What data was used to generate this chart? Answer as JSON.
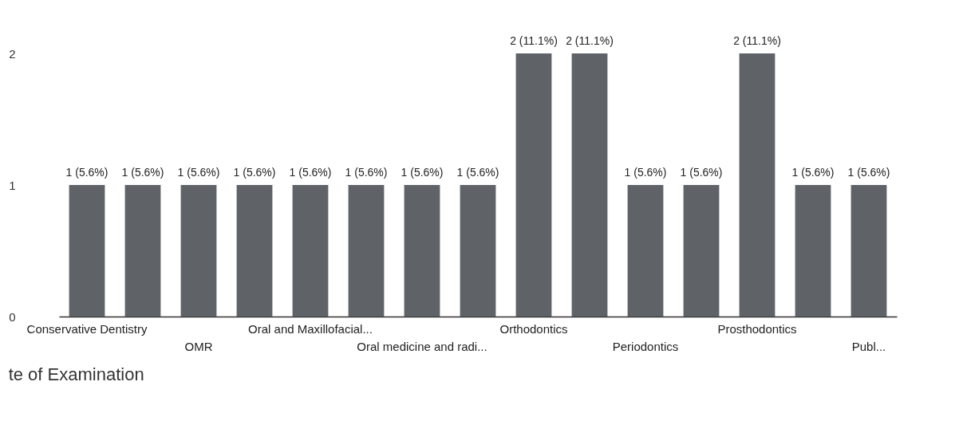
{
  "chart_data": {
    "type": "bar",
    "categories": [
      "Conservative Dentistry",
      null,
      "OMR",
      null,
      "Oral and Maxillofacial...",
      null,
      "Oral medicine and radi...",
      null,
      "Orthodontics",
      null,
      "Periodontics",
      null,
      "Prosthodontics",
      null,
      "Publ..."
    ],
    "values": [
      1,
      1,
      1,
      1,
      1,
      1,
      1,
      1,
      2,
      2,
      1,
      1,
      2,
      1,
      1
    ],
    "value_labels": [
      "1 (5.6%)",
      "1 (5.6%)",
      "1 (5.6%)",
      "1 (5.6%)",
      "1 (5.6%)",
      "1 (5.6%)",
      "1 (5.6%)",
      "1 (5.6%)",
      "2 (11.1%)",
      "2 (11.1%)",
      "1 (5.6%)",
      "1 (5.6%)",
      "2 (11.1%)",
      "1 (5.6%)",
      "1 (5.6%)"
    ],
    "color": "#5f6368",
    "ylim": [
      0,
      2
    ],
    "yticks": [
      0,
      1,
      2
    ],
    "annotations": [
      "te of Examination"
    ]
  }
}
